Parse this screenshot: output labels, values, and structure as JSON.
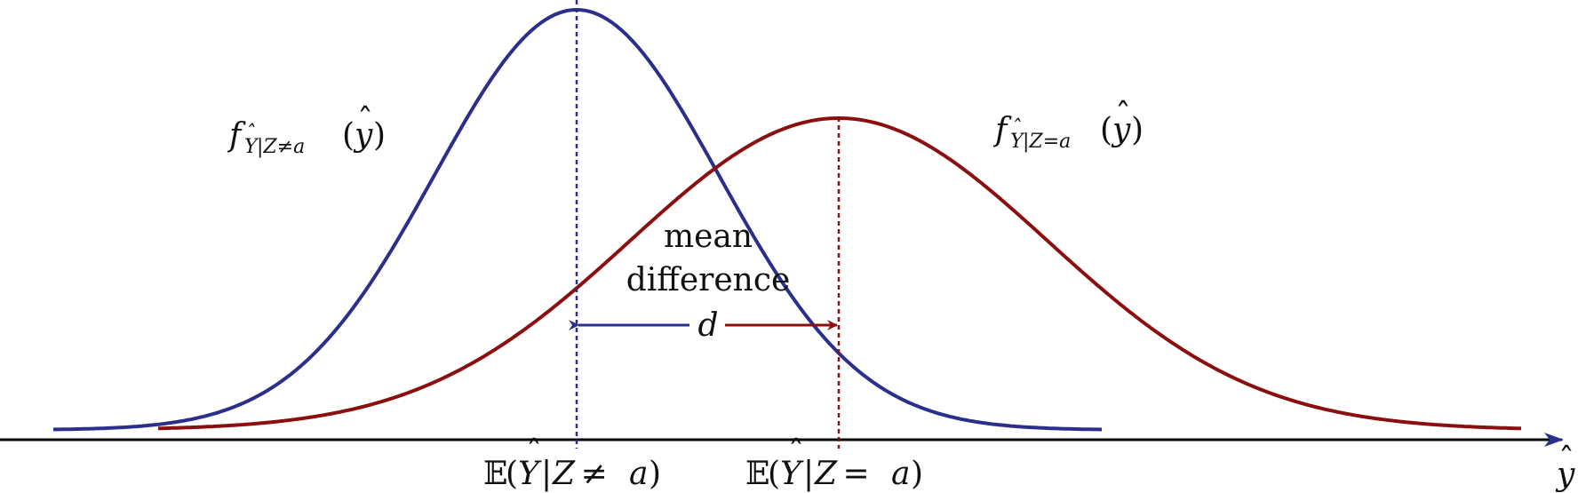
{
  "colors": {
    "blue": "#2b2f8c",
    "red": "#8c0f0f",
    "axis": "#000000"
  },
  "axis_label": {
    "base": "y",
    "hat": "ˆ"
  },
  "curve_blue_label": {
    "f": "f",
    "sub_pre": "Y",
    "sub_mid": "|Z≠a",
    "arg_open": "(",
    "arg_var": "y",
    "arg_close": ")",
    "hat": "ˆ"
  },
  "curve_red_label": {
    "f": "f",
    "sub_pre": "Y",
    "sub_mid": "|Z=a",
    "arg_open": "(",
    "arg_var": "y",
    "arg_close": ")",
    "hat": "ˆ"
  },
  "mean_blue_label": {
    "E": "𝔼",
    "open": "(",
    "Y": "Y",
    "mid": "|",
    "Z": "Z",
    "rel": " ≠ ",
    "a": "a",
    "close": ")",
    "hat": "ˆ"
  },
  "mean_red_label": {
    "E": "𝔼",
    "open": "(",
    "Y": "Y",
    "mid": "|",
    "Z": "Z",
    "rel": " = ",
    "a": "a",
    "close": ")",
    "hat": "ˆ"
  },
  "difference": {
    "line1": "mean",
    "line2": "difference",
    "symbol": "d"
  }
}
